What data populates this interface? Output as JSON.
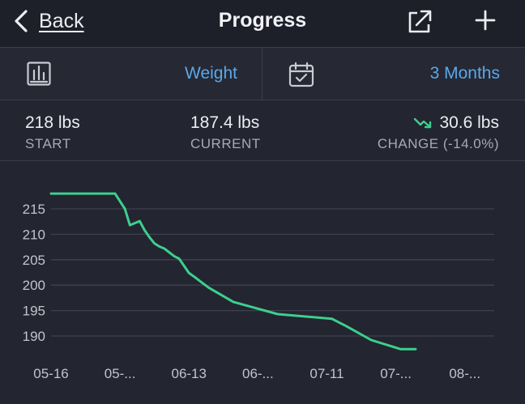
{
  "nav": {
    "back_label": "Back",
    "title": "Progress",
    "share_icon": "share-icon",
    "add_icon": "plus-icon"
  },
  "controls": {
    "metric_icon": "bar-chart-icon",
    "metric_value": "Weight",
    "range_icon": "calendar-check-icon",
    "range_value": "3 Months"
  },
  "stats": {
    "start_value": "218 lbs",
    "start_label": "START",
    "current_value": "187.4 lbs",
    "current_label": "CURRENT",
    "change_value": "30.6 lbs",
    "change_label": "CHANGE (-14.0%)",
    "change_icon": "trend-down-icon"
  },
  "colors": {
    "accent": "#5aa8ea",
    "line": "#3dcf8e",
    "background": "#232530"
  },
  "chart_data": {
    "type": "line",
    "x": [
      0,
      13,
      15,
      16,
      18,
      19,
      20,
      21,
      22,
      23,
      25,
      26,
      28,
      29,
      32,
      37,
      46,
      57,
      60,
      65,
      71,
      74
    ],
    "x_tick_labels": [
      "05-16",
      "05-...",
      "06-13",
      "06-...",
      "07-11",
      "07-...",
      "08-..."
    ],
    "x_tick_positions": [
      0,
      14,
      28,
      42,
      56,
      70,
      84
    ],
    "series": [
      {
        "values": [
          218,
          218,
          215,
          211.8,
          212.6,
          210.8,
          209.4,
          208.2,
          207.6,
          207.2,
          205.7,
          205.2,
          202.4,
          201.7,
          199.5,
          196.7,
          194.3,
          193.4,
          191.9,
          189.2,
          187.4,
          187.4
        ]
      }
    ],
    "y_ticks": [
      190,
      195,
      200,
      205,
      210,
      215
    ],
    "ylim": [
      186.5,
      218.5
    ],
    "grid": true
  }
}
